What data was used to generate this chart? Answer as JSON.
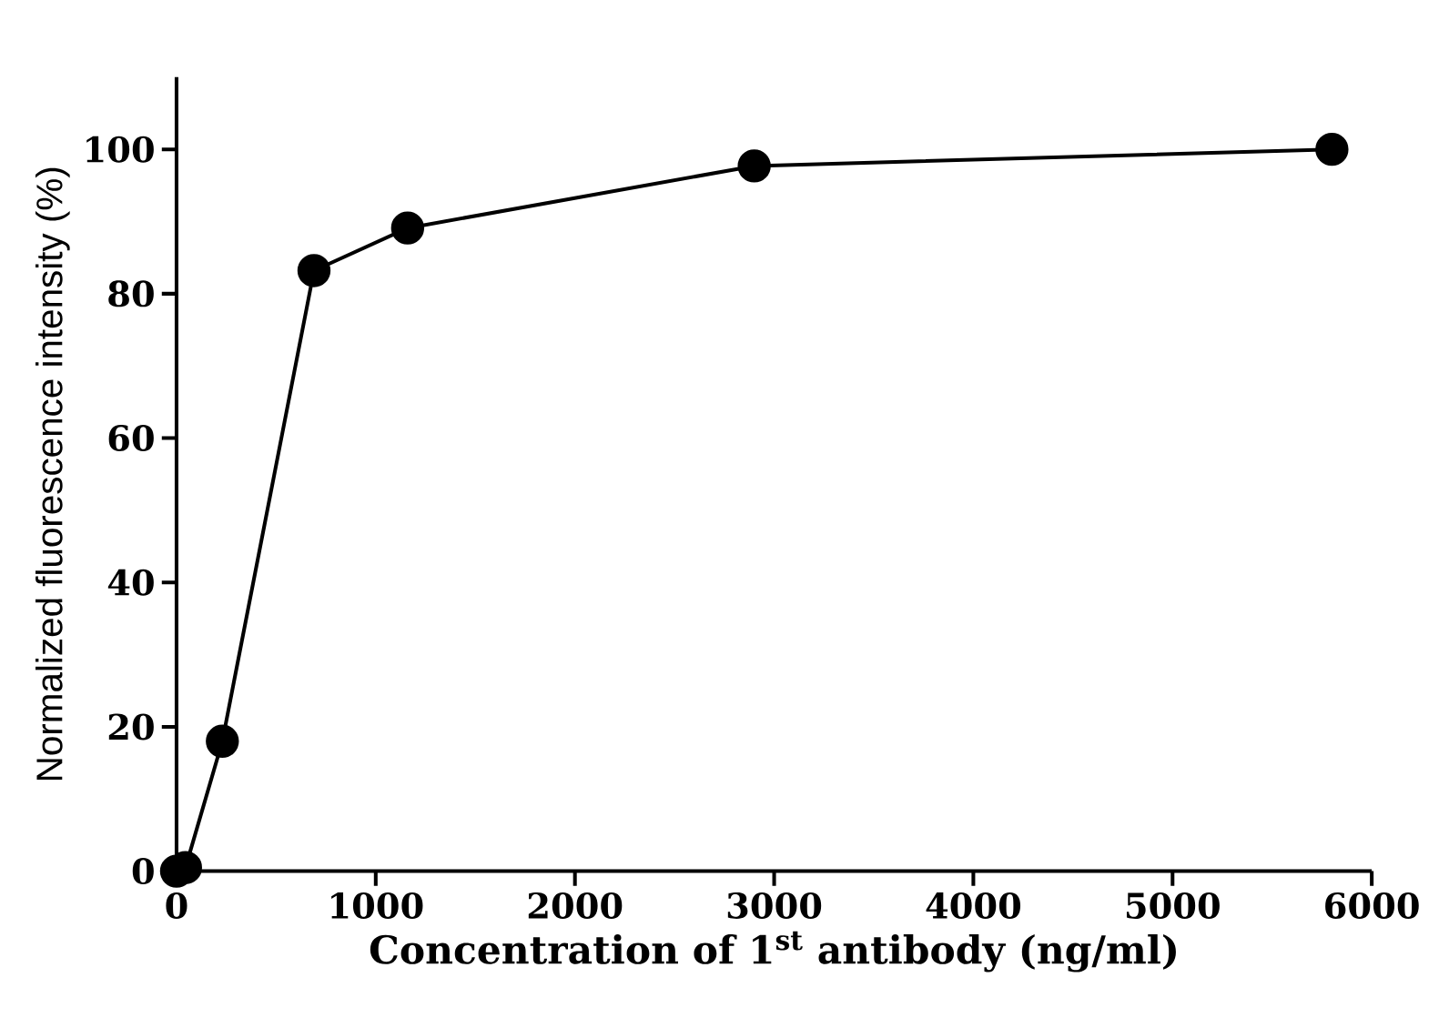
{
  "chart_data": {
    "type": "line",
    "xlabel": "Concentration of 1$^{st}$ antibody (ng/ml)",
    "ylabel": "Normalized fluorescence intensity (%)",
    "x": [
      0,
      45,
      230,
      690,
      1160,
      2900,
      5800
    ],
    "series": [
      {
        "color": "#000000",
        "values": [
          0,
          0.5,
          18,
          83.2,
          89.1,
          97.7,
          100
        ]
      }
    ],
    "xlim": [
      0,
      6000
    ],
    "xticks": [
      0,
      1000,
      2000,
      3000,
      4000,
      5000,
      6000
    ],
    "ylim": [
      0,
      110
    ],
    "yticks": [
      0,
      20,
      40,
      60,
      80,
      100
    ],
    "marker": "circle",
    "line_style": "solid",
    "grid": false
  }
}
